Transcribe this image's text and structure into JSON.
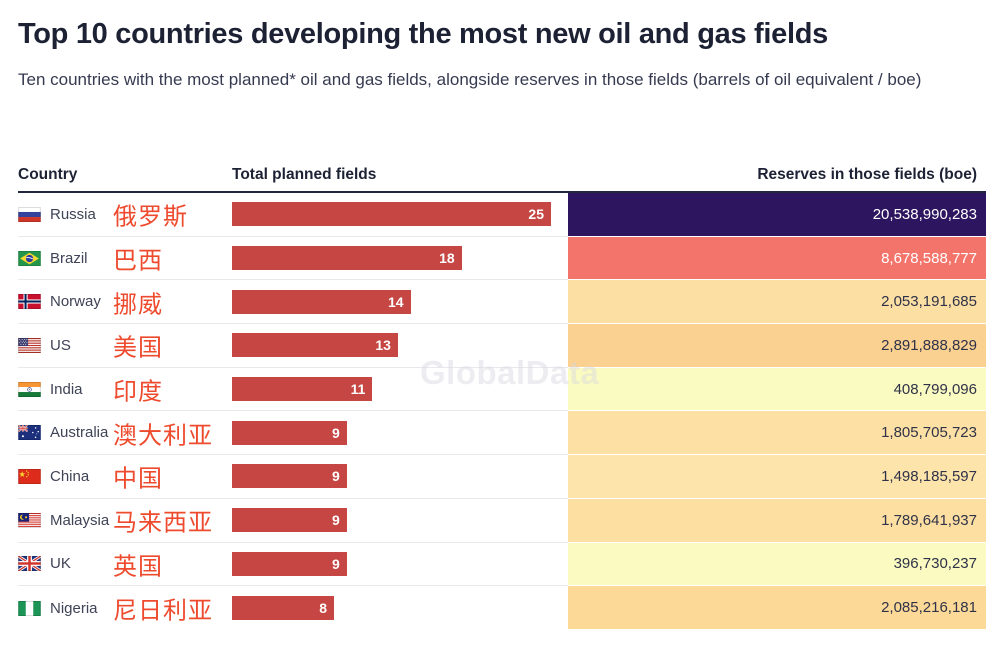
{
  "page": {
    "title": "Top 10 countries developing the most new oil and gas fields",
    "subtitle": "Ten countries with the most planned* oil and gas fields, alongside reserves in those fields (barrels of oil equivalent / boe)",
    "watermark": "GlobalData"
  },
  "colors": {
    "bar_red": "#c54642",
    "chinese_label": "#ee4b2e",
    "heading_text": "#1d2134",
    "header_underline": "#23273d",
    "reserve_dark_text": "#2f3248"
  },
  "table": {
    "headers": {
      "country": "Country",
      "fields": "Total planned fields",
      "reserves": "Reserves in those fields (boe)"
    },
    "rows": [
      {
        "flag": "russia",
        "country": "Russia",
        "country_zh": "俄罗斯",
        "planned_fields": 25,
        "reserves_boe": "20,538,990,283",
        "cell_bg": "#2d1560",
        "cell_fg": "#ffffff"
      },
      {
        "flag": "brazil",
        "country": "Brazil",
        "country_zh": "巴西",
        "planned_fields": 18,
        "reserves_boe": "8,678,588,777",
        "cell_bg": "#f3746a",
        "cell_fg": "#ffffff"
      },
      {
        "flag": "norway",
        "country": "Norway",
        "country_zh": "挪威",
        "planned_fields": 14,
        "reserves_boe": "2,053,191,685",
        "cell_bg": "#fcdfa3",
        "cell_fg": "#2f3248"
      },
      {
        "flag": "us",
        "country": "US",
        "country_zh": "美国",
        "planned_fields": 13,
        "reserves_boe": "2,891,888,829",
        "cell_bg": "#fbd191",
        "cell_fg": "#2f3248"
      },
      {
        "flag": "india",
        "country": "India",
        "country_zh": "印度",
        "planned_fields": 11,
        "reserves_boe": "408,799,096",
        "cell_bg": "#fafbc1",
        "cell_fg": "#2f3248"
      },
      {
        "flag": "australia",
        "country": "Australia",
        "country_zh": "澳大利亚",
        "planned_fields": 9,
        "reserves_boe": "1,805,705,723",
        "cell_bg": "#fde0a4",
        "cell_fg": "#2f3248"
      },
      {
        "flag": "china",
        "country": "China",
        "country_zh": "中国",
        "planned_fields": 9,
        "reserves_boe": "1,498,185,597",
        "cell_bg": "#fde4ab",
        "cell_fg": "#2f3248"
      },
      {
        "flag": "malaysia",
        "country": "Malaysia",
        "country_zh": "马来西亚",
        "planned_fields": 9,
        "reserves_boe": "1,789,641,937",
        "cell_bg": "#fddfa2",
        "cell_fg": "#2f3248"
      },
      {
        "flag": "uk",
        "country": "UK",
        "country_zh": "英国",
        "planned_fields": 9,
        "reserves_boe": "396,730,237",
        "cell_bg": "#fafac1",
        "cell_fg": "#2f3248"
      },
      {
        "flag": "nigeria",
        "country": "Nigeria",
        "country_zh": "尼日利亚",
        "planned_fields": 8,
        "reserves_boe": "2,085,216,181",
        "cell_bg": "#fcd997",
        "cell_fg": "#2f3248"
      }
    ]
  },
  "chart_data": {
    "type": "bar",
    "orientation": "horizontal",
    "title": "Top 10 countries developing the most new oil and gas fields",
    "subtitle": "Ten countries with the most planned* oil and gas fields, alongside reserves in those fields (barrels of oil equivalent / boe)",
    "categories": [
      "Russia",
      "Brazil",
      "Norway",
      "US",
      "India",
      "Australia",
      "China",
      "Malaysia",
      "UK",
      "Nigeria"
    ],
    "categories_zh": [
      "俄罗斯",
      "巴西",
      "挪威",
      "美国",
      "印度",
      "澳大利亚",
      "中国",
      "马来西亚",
      "英国",
      "尼日利亚"
    ],
    "series": [
      {
        "name": "Total planned fields",
        "values": [
          25,
          18,
          14,
          13,
          11,
          9,
          9,
          9,
          9,
          8
        ]
      },
      {
        "name": "Reserves in those fields (boe)",
        "values": [
          20538990283,
          8678588777,
          2053191685,
          2891888829,
          408799096,
          1805705723,
          1498185597,
          1789641937,
          396730237,
          2085216181
        ]
      }
    ],
    "bar_xlim": [
      0,
      25
    ],
    "grid": false,
    "legend": false,
    "bar_color": "#c54642",
    "reserve_color_scale": "light-yellow (low) to dark-purple (high)"
  }
}
